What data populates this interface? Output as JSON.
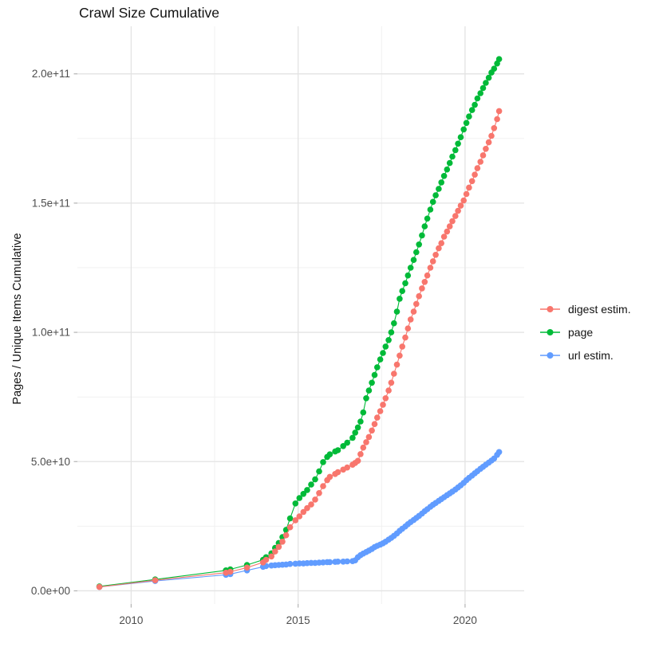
{
  "chart_data": {
    "type": "scatter",
    "title": "Crawl Size Cumulative",
    "xlabel": "",
    "ylabel": "Pages / Unique Items Cumulative",
    "unit": "1e9 (values_e9 are in billions)",
    "grid": "major and minor, light gray on white",
    "legend_position": "right-center",
    "x_axis": {
      "range": [
        2008.39,
        2021.77
      ],
      "major_ticks": [
        {
          "value": 2010,
          "label": "2010"
        },
        {
          "value": 2015,
          "label": "2015"
        },
        {
          "value": 2020,
          "label": "2020"
        }
      ],
      "minor_ticks": [
        2012.5,
        2017.5
      ]
    },
    "y_axis": {
      "range_e9": [
        -5.1,
        218.4
      ],
      "major_ticks": [
        {
          "value_e9": 0,
          "label": "0.0e+00"
        },
        {
          "value_e9": 50,
          "label": "5.0e+10"
        },
        {
          "value_e9": 100,
          "label": "1.0e+11"
        },
        {
          "value_e9": 150,
          "label": "1.5e+11"
        },
        {
          "value_e9": 200,
          "label": "2.0e+11"
        }
      ],
      "minor_ticks_e9": [
        25,
        75,
        125,
        175
      ]
    },
    "x": [
      2009.05,
      2010.72,
      2012.84,
      2012.97,
      2013.47,
      2013.95,
      2014.04,
      2014.2,
      2014.31,
      2014.42,
      2014.53,
      2014.64,
      2014.76,
      2014.92,
      2015.04,
      2015.16,
      2015.27,
      2015.39,
      2015.51,
      2015.63,
      2015.75,
      2015.87,
      2015.95,
      2016.11,
      2016.19,
      2016.35,
      2016.47,
      2016.63,
      2016.71,
      2016.79,
      2016.87,
      2016.95,
      2017.04,
      2017.12,
      2017.21,
      2017.29,
      2017.37,
      2017.46,
      2017.54,
      2017.62,
      2017.71,
      2017.79,
      2017.87,
      2017.96,
      2018.04,
      2018.12,
      2018.21,
      2018.29,
      2018.37,
      2018.46,
      2018.54,
      2018.62,
      2018.71,
      2018.79,
      2018.87,
      2018.96,
      2019.04,
      2019.12,
      2019.21,
      2019.29,
      2019.37,
      2019.46,
      2019.54,
      2019.62,
      2019.71,
      2019.79,
      2019.87,
      2019.96,
      2020.04,
      2020.12,
      2020.21,
      2020.29,
      2020.37,
      2020.46,
      2020.54,
      2020.62,
      2020.71,
      2020.79,
      2020.87,
      2020.96,
      2021.02
    ],
    "series": [
      {
        "name": "digest estim.",
        "color": "#F8766D",
        "values_e9": [
          1.5,
          4.1,
          7.0,
          7.4,
          9.0,
          11.0,
          12.0,
          13.3,
          15.2,
          17.0,
          19.0,
          21.5,
          24.6,
          27.3,
          28.8,
          30.5,
          32.0,
          33.4,
          35.3,
          37.8,
          40.5,
          42.8,
          44.1,
          45.2,
          45.9,
          46.9,
          47.7,
          48.8,
          49.5,
          50.3,
          52.9,
          55.4,
          57.5,
          59.5,
          62.0,
          64.5,
          67.0,
          69.5,
          72.0,
          74.5,
          77.5,
          80.5,
          84.0,
          87.5,
          91.0,
          94.5,
          98.0,
          101.5,
          105.0,
          108.0,
          111.0,
          114.0,
          117.0,
          119.5,
          122.0,
          125.0,
          127.5,
          130.0,
          132.5,
          134.5,
          137.0,
          139.0,
          141.0,
          143.0,
          145.0,
          147.0,
          149.0,
          151.0,
          153.5,
          156.0,
          158.5,
          161.0,
          163.5,
          166.0,
          168.5,
          171.0,
          173.5,
          176.0,
          179.0,
          182.5,
          185.6
        ]
      },
      {
        "name": "page",
        "color": "#00BA38",
        "values_e9": [
          1.7,
          4.4,
          7.9,
          8.3,
          10.0,
          12.0,
          13.0,
          14.5,
          16.6,
          18.5,
          20.8,
          23.6,
          28.0,
          33.8,
          35.9,
          37.5,
          39.0,
          41.1,
          43.1,
          46.2,
          49.8,
          51.8,
          52.8,
          53.9,
          54.4,
          56.0,
          57.3,
          59.2,
          61.2,
          63.2,
          65.5,
          69.0,
          74.5,
          77.5,
          80.5,
          83.5,
          86.5,
          89.5,
          92.0,
          94.5,
          97.0,
          100.0,
          103.5,
          108.0,
          113.0,
          116.0,
          119.0,
          122.0,
          125.0,
          128.0,
          131.0,
          134.0,
          137.5,
          141.0,
          144.0,
          147.5,
          150.5,
          153.0,
          155.5,
          158.0,
          160.5,
          163.0,
          165.5,
          168.0,
          170.5,
          173.0,
          175.5,
          178.5,
          181.0,
          183.5,
          186.0,
          188.0,
          190.5,
          192.5,
          194.5,
          196.5,
          198.5,
          200.5,
          202.0,
          204.0,
          205.7
        ]
      },
      {
        "name": "url estim.",
        "color": "#619CFF",
        "values_e9": [
          1.5,
          3.8,
          6.2,
          6.5,
          7.9,
          9.3,
          9.6,
          9.8,
          9.9,
          10.0,
          10.1,
          10.2,
          10.4,
          10.5,
          10.6,
          10.6,
          10.7,
          10.8,
          10.8,
          10.9,
          11.0,
          11.1,
          11.1,
          11.2,
          11.3,
          11.3,
          11.4,
          11.5,
          11.8,
          13.0,
          13.8,
          14.4,
          15.0,
          15.6,
          16.2,
          16.9,
          17.4,
          17.9,
          18.4,
          19.0,
          19.8,
          20.5,
          21.3,
          22.2,
          23.2,
          24.0,
          24.9,
          25.8,
          26.6,
          27.4,
          28.2,
          29.0,
          29.9,
          30.8,
          31.6,
          32.5,
          33.3,
          34.0,
          34.8,
          35.5,
          36.2,
          37.0,
          37.7,
          38.4,
          39.2,
          40.0,
          40.8,
          41.8,
          42.8,
          43.7,
          44.6,
          45.5,
          46.3,
          47.2,
          48.0,
          48.8,
          49.6,
          50.4,
          51.2,
          52.6,
          53.7
        ]
      }
    ],
    "style": {
      "major_grid_color": "#e3e3e3",
      "minor_grid_color": "#efefef",
      "tick_color": "#b3b3b3",
      "axis_text_color": "#4d4d4d",
      "point_radius": 3.8
    }
  }
}
